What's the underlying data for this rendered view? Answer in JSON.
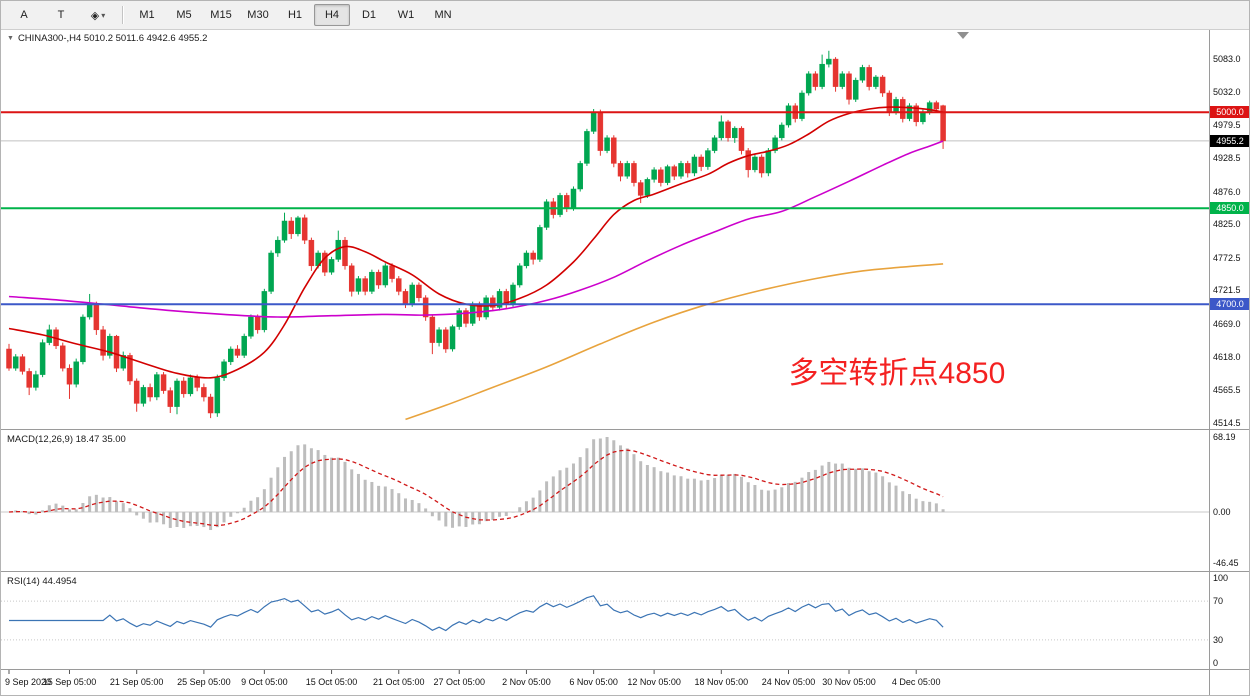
{
  "toolbar": {
    "tool_buttons": [
      {
        "id": "arrow-tool",
        "label": "A"
      },
      {
        "id": "text-tool",
        "label": "T"
      },
      {
        "id": "shapes-tool",
        "label": "◈",
        "caret": "▾"
      }
    ],
    "timeframes": [
      "M1",
      "M5",
      "M15",
      "M30",
      "H1",
      "H4",
      "D1",
      "W1",
      "MN"
    ],
    "active_timeframe": "H4"
  },
  "chart_data": {
    "type": "candlestick",
    "symbol": "CHINA300-",
    "timeframe": "H4",
    "title_text": "CHINA300-,H4 5010.2 5011.6 4942.6 4955.2",
    "ohlc_display": {
      "open": "5010.2",
      "high": "5011.6",
      "low": "4942.6",
      "close": "4955.2"
    },
    "colors": {
      "up": "#00a651",
      "down": "#e53530",
      "macd_hist": "#bdbdbd",
      "macd_signal": "#d01818",
      "rsi_line": "#3b74b4",
      "grid": "#c8c8c8",
      "last_price_line": "#c0c0c0"
    },
    "price_axis": {
      "range": [
        4505,
        5130
      ],
      "ticks": [
        "5083.0",
        "5032.0",
        "4979.5",
        "4928.5",
        "4876.0",
        "4825.0",
        "4772.5",
        "4721.5",
        "4669.0",
        "4618.0",
        "4565.5",
        "4514.5"
      ]
    },
    "time_ticks": [
      {
        "bar": 0,
        "label": "9 Sep 2020"
      },
      {
        "bar": 9,
        "label": "15 Sep 05:00"
      },
      {
        "bar": 19,
        "label": "21 Sep 05:00"
      },
      {
        "bar": 29,
        "label": "25 Sep 05:00"
      },
      {
        "bar": 38,
        "label": "9 Oct 05:00"
      },
      {
        "bar": 48,
        "label": "15 Oct 05:00"
      },
      {
        "bar": 58,
        "label": "21 Oct 05:00"
      },
      {
        "bar": 67,
        "label": "27 Oct 05:00"
      },
      {
        "bar": 77,
        "label": "2 Nov 05:00"
      },
      {
        "bar": 87,
        "label": "6 Nov 05:00"
      },
      {
        "bar": 96,
        "label": "12 Nov 05:00"
      },
      {
        "bar": 106,
        "label": "18 Nov 05:00"
      },
      {
        "bar": 116,
        "label": "24 Nov 05:00"
      },
      {
        "bar": 125,
        "label": "30 Nov 05:00"
      },
      {
        "bar": 135,
        "label": "4 Dec 05:00"
      }
    ],
    "hlines": [
      {
        "price": 5000.0,
        "label": "5000.0",
        "color": "#dc1414",
        "width": 2
      },
      {
        "price": 4850.0,
        "label": "4850.0",
        "color": "#00b34a",
        "width": 2
      },
      {
        "price": 4700.0,
        "label": "4700.0",
        "color": "#3c58c8",
        "width": 2
      }
    ],
    "last_price": {
      "value": 4955.2,
      "label": "4955.2",
      "badge_color": "#000000"
    },
    "annotation": {
      "text": "多空转折点4850",
      "color": "#f42121",
      "bar": 116,
      "price": 4575
    },
    "candles": [
      [
        4630,
        4638,
        4596,
        4600
      ],
      [
        4600,
        4622,
        4596,
        4618
      ],
      [
        4618,
        4622,
        4590,
        4595
      ],
      [
        4595,
        4600,
        4558,
        4570
      ],
      [
        4570,
        4596,
        4565,
        4590
      ],
      [
        4590,
        4645,
        4586,
        4640
      ],
      [
        4640,
        4668,
        4636,
        4660
      ],
      [
        4660,
        4664,
        4630,
        4635
      ],
      [
        4635,
        4640,
        4595,
        4600
      ],
      [
        4600,
        4606,
        4552,
        4575
      ],
      [
        4575,
        4615,
        4570,
        4610
      ],
      [
        4610,
        4684,
        4606,
        4680
      ],
      [
        4680,
        4716,
        4676,
        4700
      ],
      [
        4700,
        4704,
        4652,
        4660
      ],
      [
        4660,
        4666,
        4612,
        4620
      ],
      [
        4620,
        4654,
        4615,
        4650
      ],
      [
        4650,
        4652,
        4594,
        4600
      ],
      [
        4600,
        4626,
        4596,
        4620
      ],
      [
        4620,
        4624,
        4574,
        4580
      ],
      [
        4580,
        4584,
        4532,
        4545
      ],
      [
        4545,
        4574,
        4540,
        4570
      ],
      [
        4570,
        4576,
        4548,
        4555
      ],
      [
        4555,
        4594,
        4550,
        4590
      ],
      [
        4590,
        4594,
        4560,
        4565
      ],
      [
        4565,
        4570,
        4530,
        4540
      ],
      [
        4540,
        4584,
        4528,
        4580
      ],
      [
        4580,
        4586,
        4554,
        4560
      ],
      [
        4560,
        4590,
        4556,
        4585
      ],
      [
        4585,
        4590,
        4564,
        4570
      ],
      [
        4570,
        4576,
        4548,
        4555
      ],
      [
        4555,
        4560,
        4522,
        4530
      ],
      [
        4530,
        4590,
        4524,
        4585
      ],
      [
        4585,
        4614,
        4580,
        4610
      ],
      [
        4610,
        4634,
        4605,
        4630
      ],
      [
        4630,
        4636,
        4616,
        4620
      ],
      [
        4620,
        4654,
        4616,
        4650
      ],
      [
        4650,
        4684,
        4646,
        4680
      ],
      [
        4680,
        4684,
        4654,
        4660
      ],
      [
        4660,
        4724,
        4656,
        4720
      ],
      [
        4720,
        4784,
        4716,
        4780
      ],
      [
        4780,
        4806,
        4774,
        4800
      ],
      [
        4800,
        4843,
        4796,
        4830
      ],
      [
        4830,
        4836,
        4802,
        4810
      ],
      [
        4810,
        4838,
        4806,
        4835
      ],
      [
        4835,
        4840,
        4794,
        4800
      ],
      [
        4800,
        4804,
        4752,
        4760
      ],
      [
        4760,
        4784,
        4756,
        4780
      ],
      [
        4780,
        4784,
        4744,
        4750
      ],
      [
        4750,
        4774,
        4746,
        4770
      ],
      [
        4770,
        4815,
        4766,
        4800
      ],
      [
        4800,
        4805,
        4754,
        4760
      ],
      [
        4760,
        4764,
        4712,
        4720
      ],
      [
        4720,
        4744,
        4715,
        4740
      ],
      [
        4740,
        4744,
        4714,
        4720
      ],
      [
        4720,
        4754,
        4716,
        4750
      ],
      [
        4750,
        4754,
        4724,
        4730
      ],
      [
        4730,
        4764,
        4726,
        4760
      ],
      [
        4760,
        4764,
        4734,
        4740
      ],
      [
        4740,
        4744,
        4714,
        4720
      ],
      [
        4720,
        4724,
        4694,
        4700
      ],
      [
        4700,
        4734,
        4696,
        4730
      ],
      [
        4730,
        4734,
        4704,
        4710
      ],
      [
        4710,
        4714,
        4674,
        4680
      ],
      [
        4680,
        4684,
        4622,
        4640
      ],
      [
        4640,
        4664,
        4634,
        4660
      ],
      [
        4660,
        4664,
        4624,
        4630
      ],
      [
        4630,
        4668,
        4626,
        4665
      ],
      [
        4665,
        4694,
        4660,
        4690
      ],
      [
        4690,
        4694,
        4664,
        4670
      ],
      [
        4670,
        4704,
        4666,
        4700
      ],
      [
        4700,
        4704,
        4674,
        4680
      ],
      [
        4680,
        4714,
        4676,
        4710
      ],
      [
        4710,
        4714,
        4690,
        4695
      ],
      [
        4695,
        4724,
        4690,
        4720
      ],
      [
        4720,
        4724,
        4694,
        4700
      ],
      [
        4700,
        4734,
        4696,
        4730
      ],
      [
        4730,
        4764,
        4726,
        4760
      ],
      [
        4760,
        4784,
        4756,
        4780
      ],
      [
        4780,
        4784,
        4762,
        4770
      ],
      [
        4770,
        4824,
        4766,
        4820
      ],
      [
        4820,
        4864,
        4816,
        4860
      ],
      [
        4860,
        4866,
        4834,
        4840
      ],
      [
        4840,
        4874,
        4836,
        4870
      ],
      [
        4870,
        4874,
        4844,
        4850
      ],
      [
        4850,
        4884,
        4846,
        4880
      ],
      [
        4880,
        4924,
        4876,
        4920
      ],
      [
        4920,
        4974,
        4916,
        4970
      ],
      [
        4970,
        5005,
        4966,
        5000
      ],
      [
        5000,
        5004,
        4932,
        4940
      ],
      [
        4940,
        4964,
        4936,
        4960
      ],
      [
        4960,
        4964,
        4914,
        4920
      ],
      [
        4920,
        4924,
        4892,
        4900
      ],
      [
        4900,
        4924,
        4896,
        4920
      ],
      [
        4920,
        4924,
        4884,
        4890
      ],
      [
        4890,
        4894,
        4858,
        4870
      ],
      [
        4870,
        4898,
        4866,
        4895
      ],
      [
        4895,
        4914,
        4890,
        4910
      ],
      [
        4910,
        4914,
        4884,
        4890
      ],
      [
        4890,
        4918,
        4886,
        4915
      ],
      [
        4915,
        4918,
        4894,
        4900
      ],
      [
        4900,
        4924,
        4896,
        4920
      ],
      [
        4920,
        4924,
        4898,
        4905
      ],
      [
        4905,
        4934,
        4900,
        4930
      ],
      [
        4930,
        4934,
        4908,
        4915
      ],
      [
        4915,
        4944,
        4910,
        4940
      ],
      [
        4940,
        4964,
        4936,
        4960
      ],
      [
        4960,
        4995,
        4956,
        4985
      ],
      [
        4985,
        4988,
        4954,
        4960
      ],
      [
        4960,
        4978,
        4952,
        4975
      ],
      [
        4975,
        4978,
        4934,
        4940
      ],
      [
        4940,
        4944,
        4898,
        4910
      ],
      [
        4910,
        4934,
        4906,
        4930
      ],
      [
        4930,
        4934,
        4898,
        4905
      ],
      [
        4905,
        4944,
        4900,
        4940
      ],
      [
        4940,
        4964,
        4936,
        4960
      ],
      [
        4960,
        4984,
        4956,
        4980
      ],
      [
        4980,
        5014,
        4976,
        5010
      ],
      [
        5010,
        5014,
        4984,
        4990
      ],
      [
        4990,
        5034,
        4986,
        5030
      ],
      [
        5030,
        5064,
        5026,
        5060
      ],
      [
        5060,
        5064,
        5034,
        5040
      ],
      [
        5040,
        5090,
        5036,
        5075
      ],
      [
        5075,
        5096,
        5070,
        5083
      ],
      [
        5083,
        5086,
        5032,
        5040
      ],
      [
        5040,
        5064,
        5036,
        5060
      ],
      [
        5060,
        5064,
        5012,
        5020
      ],
      [
        5020,
        5054,
        5016,
        5050
      ],
      [
        5050,
        5074,
        5046,
        5070
      ],
      [
        5070,
        5074,
        5034,
        5040
      ],
      [
        5040,
        5058,
        5036,
        5055
      ],
      [
        5055,
        5058,
        5024,
        5030
      ],
      [
        5030,
        5034,
        4994,
        5000
      ],
      [
        5000,
        5024,
        4996,
        5020
      ],
      [
        5020,
        5024,
        4984,
        4990
      ],
      [
        4990,
        5014,
        4986,
        5010
      ],
      [
        5010,
        5014,
        4978,
        4985
      ],
      [
        4985,
        5004,
        4981,
        5000
      ],
      [
        5000,
        5018,
        4996,
        5015
      ],
      [
        5015,
        5018,
        5000,
        5005
      ],
      [
        5010.2,
        5011.6,
        4942.6,
        4955.2
      ]
    ],
    "overlays": {
      "ma_fast_red": {
        "color": "#d20000",
        "points": [
          [
            0,
            4662
          ],
          [
            5,
            4652
          ],
          [
            10,
            4638
          ],
          [
            15,
            4625
          ],
          [
            20,
            4608
          ],
          [
            25,
            4592
          ],
          [
            30,
            4585
          ],
          [
            34,
            4598
          ],
          [
            38,
            4625
          ],
          [
            41,
            4668
          ],
          [
            44,
            4726
          ],
          [
            47,
            4772
          ],
          [
            50,
            4790
          ],
          [
            53,
            4782
          ],
          [
            56,
            4766
          ],
          [
            60,
            4746
          ],
          [
            64,
            4716
          ],
          [
            68,
            4700
          ],
          [
            72,
            4698
          ],
          [
            76,
            4709
          ],
          [
            80,
            4730
          ],
          [
            84,
            4766
          ],
          [
            87,
            4802
          ],
          [
            90,
            4840
          ],
          [
            93,
            4862
          ],
          [
            96,
            4872
          ],
          [
            100,
            4888
          ],
          [
            104,
            4903
          ],
          [
            107,
            4920
          ],
          [
            110,
            4932
          ],
          [
            113,
            4939
          ],
          [
            116,
            4949
          ],
          [
            119,
            4966
          ],
          [
            122,
            4986
          ],
          [
            125,
            4998
          ],
          [
            128,
            5005
          ],
          [
            131,
            5008
          ],
          [
            134,
            5007
          ],
          [
            137,
            5004
          ],
          [
            139,
            5000
          ]
        ]
      },
      "ma_mid_magenta": {
        "color": "#cc00cc",
        "points": [
          [
            0,
            4712
          ],
          [
            8,
            4706
          ],
          [
            16,
            4698
          ],
          [
            24,
            4690
          ],
          [
            32,
            4684
          ],
          [
            40,
            4680
          ],
          [
            48,
            4682
          ],
          [
            56,
            4684
          ],
          [
            62,
            4683
          ],
          [
            68,
            4686
          ],
          [
            74,
            4693
          ],
          [
            80,
            4706
          ],
          [
            85,
            4722
          ],
          [
            90,
            4742
          ],
          [
            95,
            4768
          ],
          [
            100,
            4792
          ],
          [
            105,
            4813
          ],
          [
            110,
            4833
          ],
          [
            115,
            4845
          ],
          [
            120,
            4868
          ],
          [
            125,
            4892
          ],
          [
            130,
            4917
          ],
          [
            134,
            4936
          ],
          [
            137,
            4947
          ],
          [
            139,
            4955
          ]
        ]
      },
      "ma_slow_orange": {
        "color": "#e8a33d",
        "points": [
          [
            59,
            4520
          ],
          [
            65,
            4542
          ],
          [
            72,
            4570
          ],
          [
            80,
            4602
          ],
          [
            88,
            4638
          ],
          [
            96,
            4672
          ],
          [
            104,
            4700
          ],
          [
            112,
            4722
          ],
          [
            120,
            4740
          ],
          [
            127,
            4752
          ],
          [
            133,
            4758
          ],
          [
            139,
            4763
          ]
        ]
      }
    },
    "macd": {
      "label": "MACD(12,26,9) 18.47 35.00",
      "fast": 12,
      "slow": 26,
      "signal": 9,
      "value_main": "18.47",
      "value_signal": "35.00",
      "axis_ticks": [
        "68.19",
        "0.00",
        "-46.45"
      ],
      "plot_range": [
        -53.6,
        74.5
      ],
      "peak_display": 68.19
    },
    "rsi": {
      "label": "RSI(14) 44.4954",
      "period": 14,
      "value": "44.4954",
      "axis_ticks": [
        "100",
        "70",
        "30",
        "0"
      ],
      "levels": [
        70,
        30
      ]
    }
  }
}
